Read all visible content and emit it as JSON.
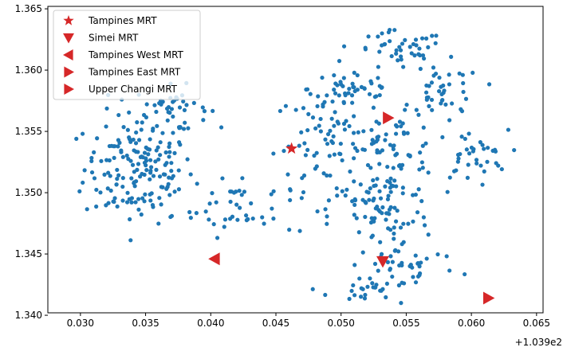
{
  "chart_data": {
    "type": "scatter",
    "x_offset_label": "+1.039e2",
    "xlim": [
      0.0275,
      0.0655
    ],
    "ylim": [
      1.3402,
      1.3652
    ],
    "x_ticks": [
      0.03,
      0.035,
      0.04,
      0.045,
      0.05,
      0.055,
      0.06,
      0.065
    ],
    "x_tick_labels": [
      "0.030",
      "0.035",
      "0.040",
      "0.045",
      "0.050",
      "0.055",
      "0.060",
      "0.065"
    ],
    "y_ticks": [
      1.34,
      1.345,
      1.35,
      1.355,
      1.36,
      1.365
    ],
    "y_tick_labels": [
      "1.340",
      "1.345",
      "1.350",
      "1.355",
      "1.360",
      "1.365"
    ],
    "grid": false,
    "legend_position": "top-left",
    "colors": {
      "points": "#1f77b4",
      "stations": "#d62728"
    },
    "clusters": [
      {
        "cx": 0.0345,
        "cy": 1.352,
        "sx": 0.003,
        "sy": 0.0032,
        "n": 170
      },
      {
        "cx": 0.037,
        "cy": 1.357,
        "sx": 0.002,
        "sy": 0.0012,
        "n": 40
      },
      {
        "cx": 0.042,
        "cy": 1.349,
        "sx": 0.0035,
        "sy": 0.0018,
        "n": 45
      },
      {
        "cx": 0.049,
        "cy": 1.354,
        "sx": 0.003,
        "sy": 0.003,
        "n": 80
      },
      {
        "cx": 0.051,
        "cy": 1.3585,
        "sx": 0.0025,
        "sy": 0.0015,
        "n": 40
      },
      {
        "cx": 0.0545,
        "cy": 1.3615,
        "sx": 0.0025,
        "sy": 0.0012,
        "n": 45
      },
      {
        "cx": 0.058,
        "cy": 1.358,
        "sx": 0.002,
        "sy": 0.0018,
        "n": 40
      },
      {
        "cx": 0.054,
        "cy": 1.353,
        "sx": 0.0025,
        "sy": 0.0025,
        "n": 80
      },
      {
        "cx": 0.06,
        "cy": 1.353,
        "sx": 0.002,
        "sy": 0.0015,
        "n": 35
      },
      {
        "cx": 0.053,
        "cy": 1.348,
        "sx": 0.0028,
        "sy": 0.0022,
        "n": 60
      },
      {
        "cx": 0.055,
        "cy": 1.344,
        "sx": 0.003,
        "sy": 0.0015,
        "n": 45
      },
      {
        "cx": 0.0515,
        "cy": 1.342,
        "sx": 0.0018,
        "sy": 0.0008,
        "n": 20
      }
    ],
    "stations": [
      {
        "name": "Tampines MRT",
        "marker": "star",
        "x": 0.0462,
        "y": 1.3536
      },
      {
        "name": "Simei MRT",
        "marker": "triangle-down",
        "x": 0.0532,
        "y": 1.3444
      },
      {
        "name": "Tampines West MRT",
        "marker": "triangle-left",
        "x": 0.0403,
        "y": 1.3446
      },
      {
        "name": "Tampines East MRT",
        "marker": "triangle-right",
        "x": 0.0536,
        "y": 1.3561
      },
      {
        "name": "Upper Changi MRT",
        "marker": "triangle-right",
        "x": 0.0613,
        "y": 1.3414
      }
    ]
  }
}
